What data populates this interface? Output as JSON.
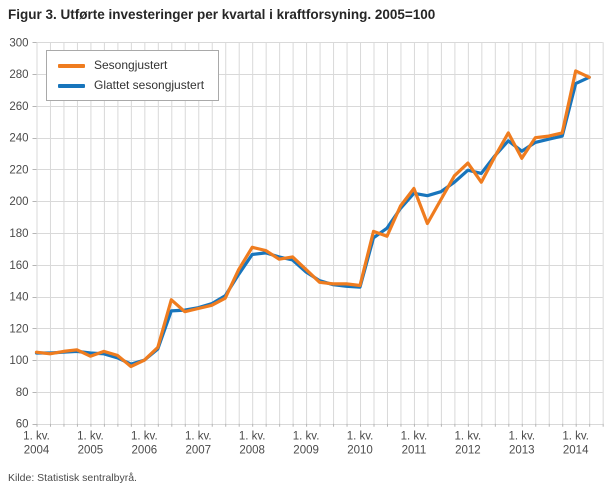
{
  "title": "Figur 3. Utførte investeringer per kvartal i kraftforsyning. 2005=100",
  "source": "Kilde: Statistisk sentralbyrå.",
  "legend": [
    {
      "label": "Sesongjustert",
      "color": "#ef7c1f"
    },
    {
      "label": "Glattet sesongjustert",
      "color": "#1875bc"
    }
  ],
  "colors": {
    "grid": "#d9d9d9",
    "axis_text": "#4b4b4b",
    "tick": "#b5b5b5"
  },
  "chart_data": {
    "type": "line",
    "title": "Figur 3. Utførte investeringer per kvartal i kraftforsyning. 2005=100",
    "xlabel": "",
    "ylabel": "",
    "ylim": [
      60,
      300
    ],
    "y_ticks": [
      300,
      280,
      260,
      240,
      220,
      200,
      180,
      160,
      140,
      120,
      100,
      80,
      60
    ],
    "grid": true,
    "legend_position": "top-left-inside",
    "x_axis": {
      "tick_prefix": "1. kv.",
      "tick_years": [
        "2004",
        "2005",
        "2006",
        "2007",
        "2008",
        "2009",
        "2010",
        "2011",
        "2012",
        "2013",
        "2014"
      ],
      "quarters_per_year": 4,
      "start_quarter": "2004 K1",
      "end_quarter": "2014 K2"
    },
    "series": [
      {
        "name": "Sesongjustert",
        "color": "#ef7c1f",
        "values": [
          105,
          104,
          105.5,
          106.5,
          102.5,
          105.5,
          103,
          96,
          100,
          108,
          138,
          130.5,
          132.5,
          134.5,
          139,
          157,
          171,
          169,
          163.5,
          165,
          157,
          149,
          148,
          148,
          147,
          181,
          178,
          197,
          208,
          186,
          201,
          216,
          224,
          212,
          228,
          243,
          227,
          240,
          241,
          243,
          282,
          278
        ]
      },
      {
        "name": "Glattet sesongjustert",
        "color": "#1875bc",
        "values": [
          104.5,
          104.5,
          105,
          105.5,
          104.5,
          104,
          101.5,
          97.5,
          100,
          107,
          131,
          131.5,
          133,
          135.5,
          140.5,
          154,
          166.5,
          167.5,
          165,
          163,
          155.5,
          150,
          147.5,
          146.5,
          146,
          177,
          183,
          195.5,
          205,
          203.5,
          206,
          212,
          219.5,
          217.5,
          228.5,
          238,
          231.5,
          237,
          239,
          241,
          274,
          278
        ]
      }
    ]
  }
}
